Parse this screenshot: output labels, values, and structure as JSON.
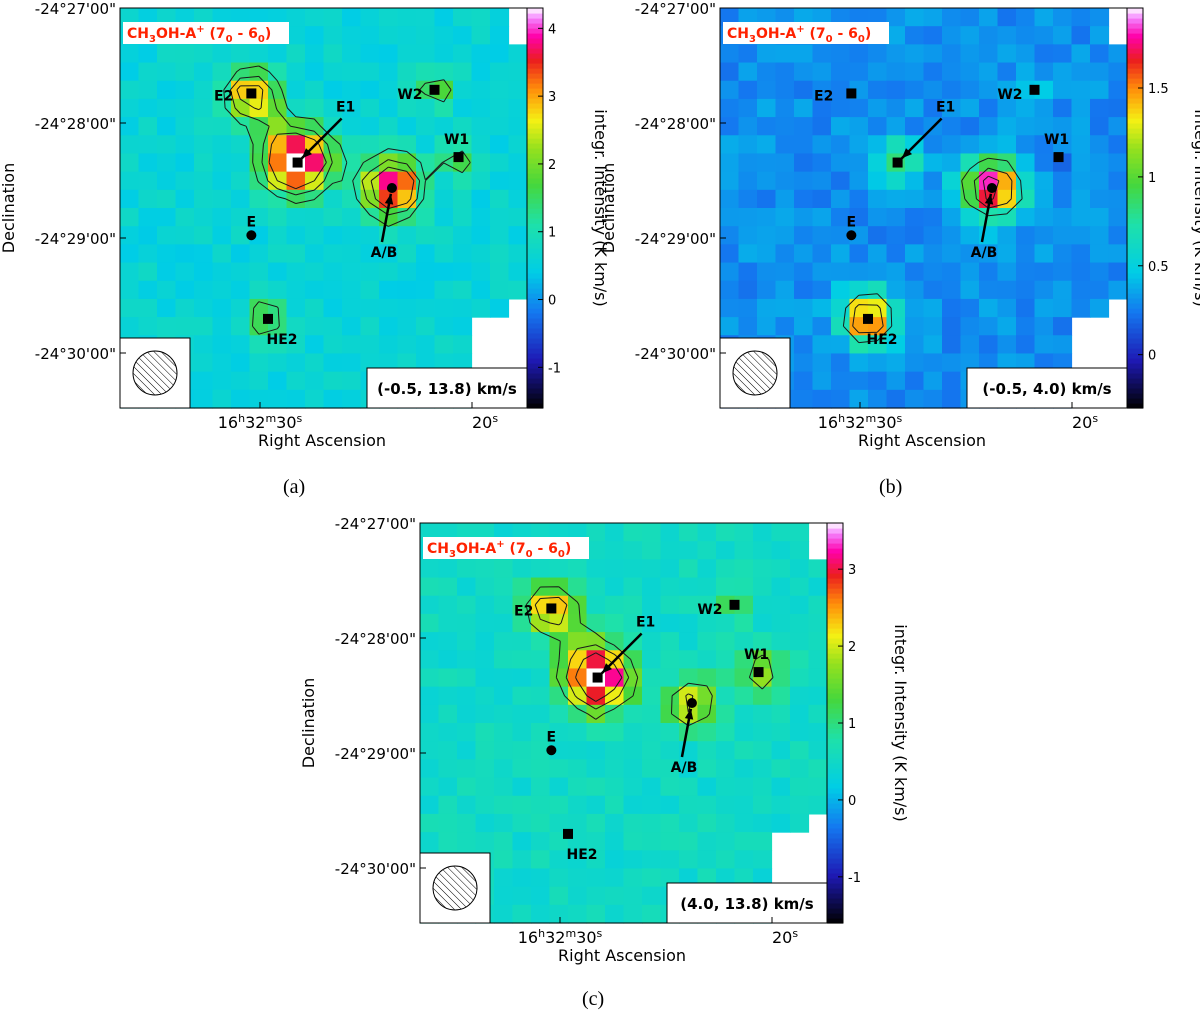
{
  "chart_data": [
    {
      "type": "heatmap",
      "panel_caption": "(a)",
      "title": "CH3OH-A+ (70 - 60)",
      "title_parts": {
        "main": "CH",
        "sub1": "3",
        "mid": "OH-A",
        "sup": "+",
        "paren_open": " (7",
        "sub2": "0",
        "dash": " - 6",
        "sub3": "0",
        "paren_close": ")"
      },
      "velocity_range_label": "(-0.5, 13.8) km/s",
      "xlabel": "Right Ascension",
      "ylabel": "Declination",
      "colorbar_label": "integr. Intensity (K km/s)",
      "colorbar_range": [
        -1.6,
        4.3
      ],
      "colorbar_ticks": [
        -1,
        0,
        1,
        2,
        3,
        4
      ],
      "x_ticks": [
        {
          "main": "16",
          "sup_h": "h",
          "mid": "32",
          "sup_m": "m",
          "end": "30",
          "sup_s": "s"
        },
        {
          "main": "20",
          "sup_s": "s"
        }
      ],
      "y_ticks": [
        "-24°27'00\"",
        "-24°28'00\"",
        "-24°29'00\"",
        "-24°30'00\""
      ],
      "sources": [
        {
          "name": "E2",
          "marker": "square",
          "peak": 2.6,
          "sigma": 1.0
        },
        {
          "name": "E1",
          "marker": "square",
          "peak": 4.0,
          "sigma": 1.25
        },
        {
          "name": "A/B",
          "marker": "circle",
          "peak": 4.2,
          "sigma": 1.05
        },
        {
          "name": "W2",
          "marker": "square",
          "peak": 1.8,
          "sigma": 0.7
        },
        {
          "name": "W1",
          "marker": "square",
          "peak": 1.6,
          "sigma": 0.8
        },
        {
          "name": "E",
          "marker": "circle",
          "peak": 0,
          "sigma": 1.0
        },
        {
          "name": "HE2",
          "marker": "square",
          "peak": 1.8,
          "sigma": 0.8
        }
      ],
      "background_level": 0.6,
      "bridge_E1_E2": 1.7,
      "contour_levels": [
        1.3,
        1.9,
        2.5
      ]
    },
    {
      "type": "heatmap",
      "panel_caption": "(b)",
      "title": "CH3OH-A+ (70 - 60)",
      "title_parts": {
        "main": "CH",
        "sub1": "3",
        "mid": "OH-A",
        "sup": "+",
        "paren_open": " (7",
        "sub2": "0",
        "dash": " - 6",
        "sub3": "0",
        "paren_close": ")"
      },
      "velocity_range_label": "(-0.5, 4.0) km/s",
      "xlabel": "Right Ascension",
      "ylabel": "Declination",
      "colorbar_label": "integr. Intensity (K km/s)",
      "colorbar_range": [
        -0.3,
        1.95
      ],
      "colorbar_ticks": [
        0,
        0.5,
        1,
        1.5
      ],
      "x_ticks": [
        {
          "main": "16",
          "sup_h": "h",
          "mid": "32",
          "sup_m": "m",
          "end": "30",
          "sup_s": "s"
        },
        {
          "main": "20",
          "sup_s": "s"
        }
      ],
      "y_ticks": [
        "-24°27'00\"",
        "-24°28'00\"",
        "-24°29'00\"",
        "-24°30'00\""
      ],
      "sources": [
        {
          "name": "E2",
          "marker": "square",
          "peak": 0.0,
          "sigma": 1.0
        },
        {
          "name": "E1",
          "marker": "square",
          "peak": 0.85,
          "sigma": 0.9
        },
        {
          "name": "A/B",
          "marker": "circle",
          "peak": 1.9,
          "sigma": 1.05
        },
        {
          "name": "W2",
          "marker": "square",
          "peak": 0.55,
          "sigma": 0.7
        },
        {
          "name": "W1",
          "marker": "square",
          "peak": 0.2,
          "sigma": 0.7
        },
        {
          "name": "E",
          "marker": "circle",
          "peak": 0,
          "sigma": 1.0
        },
        {
          "name": "HE2",
          "marker": "square",
          "peak": 1.7,
          "sigma": 0.95
        }
      ],
      "background_level": 0.3,
      "bridge_E1_E2": 0,
      "contour_levels": [
        0.8,
        1.2,
        1.6
      ]
    },
    {
      "type": "heatmap",
      "panel_caption": "(c)",
      "title": "CH3OH-A+ (70 - 60)",
      "title_parts": {
        "main": "CH",
        "sub1": "3",
        "mid": "OH-A",
        "sup": "+",
        "paren_open": " (7",
        "sub2": "0",
        "dash": " - 6",
        "sub3": "0",
        "paren_close": ")"
      },
      "velocity_range_label": "(4.0, 13.8) km/s",
      "xlabel": "Right Ascension",
      "ylabel": "Declination",
      "colorbar_label": "integr. Intensity (K km/s)",
      "colorbar_range": [
        -1.6,
        3.6
      ],
      "colorbar_ticks": [
        -1,
        0,
        1,
        2,
        3
      ],
      "x_ticks": [
        {
          "main": "16",
          "sup_h": "h",
          "mid": "32",
          "sup_m": "m",
          "end": "30",
          "sup_s": "s"
        },
        {
          "main": "20",
          "sup_s": "s"
        }
      ],
      "y_ticks": [
        "-24°27'00\"",
        "-24°28'00\"",
        "-24°29'00\"",
        "-24°30'00\""
      ],
      "sources": [
        {
          "name": "E2",
          "marker": "square",
          "peak": 2.1,
          "sigma": 1.0
        },
        {
          "name": "E1",
          "marker": "square",
          "peak": 3.5,
          "sigma": 1.25
        },
        {
          "name": "A/B",
          "marker": "circle",
          "peak": 2.2,
          "sigma": 0.95
        },
        {
          "name": "W2",
          "marker": "square",
          "peak": 1.1,
          "sigma": 0.8
        },
        {
          "name": "W1",
          "marker": "square",
          "peak": 1.7,
          "sigma": 0.9
        },
        {
          "name": "E",
          "marker": "circle",
          "peak": 0,
          "sigma": 1.0
        },
        {
          "name": "HE2",
          "marker": "square",
          "peak": 0,
          "sigma": 0.8
        }
      ],
      "background_level": 0.5,
      "bridge_E1_E2": 1.3,
      "contour_levels": [
        1.3,
        1.9,
        2.5
      ]
    }
  ],
  "colors": {
    "title_text": "#ff2200",
    "contour": "#1a1a1a",
    "marker": "#000000"
  }
}
